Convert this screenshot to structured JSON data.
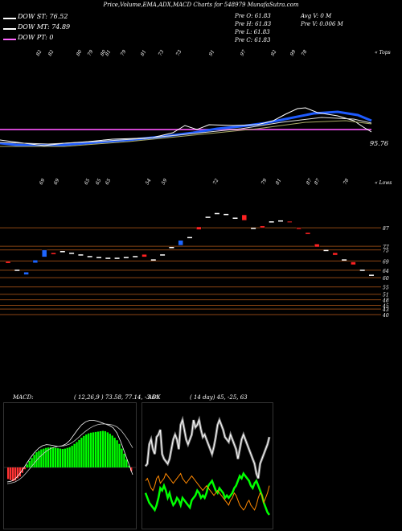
{
  "header": {
    "title": "Price,Volume,EMA,ADX,MACD Charts for 548979 MunafaSutra.com"
  },
  "legend": [
    {
      "label": "DOW ST: 76.52",
      "color": "#ffffff"
    },
    {
      "label": "DOW MT: 74.89",
      "color": "#ffffff"
    },
    {
      "label": "DOW PT: 0",
      "color": "#ff66ff"
    }
  ],
  "ohlc": {
    "open": "Pre  O: 61.83",
    "high": "Pre  H: 61.83",
    "low": "Pre  L: 61.83",
    "close": "Pre  C: 61.83",
    "avg_vol": "Avg V: 0  M",
    "pre_vol": "Pre  V: 0.006  M"
  },
  "upper_label": "« Tops",
  "lower_label": "« Lows",
  "last_price_label": "95.76",
  "macd": {
    "title": "MACD:",
    "params": "( 12,26,9 ) 73.58, 77.14, -3.61"
  },
  "adx": {
    "title": "ADX",
    "params": "( 14  day) 45,  -25,  63"
  },
  "chart_data": [
    {
      "type": "line",
      "name": "price-ema-panel",
      "tops_labels": [
        "82",
        "82",
        "80",
        "79",
        "80",
        "81",
        "79",
        "81",
        "73",
        "73",
        "91",
        "97",
        "92",
        "99",
        "78"
      ],
      "lows_labels": [
        "69",
        "69",
        "65",
        "65",
        "65",
        "54",
        "59",
        "72",
        "79",
        "81",
        "87",
        "87",
        "78"
      ],
      "price_label": "95.76"
    },
    {
      "type": "scatter",
      "name": "candles-support-resistance",
      "levels": [
        87,
        77,
        75,
        69,
        64,
        60,
        55,
        51,
        48,
        45,
        43,
        40
      ],
      "candles": [
        {
          "o": 67.8,
          "c": 68.8,
          "color": "red"
        },
        {
          "o": 64.3,
          "c": 64.3,
          "color": "white"
        },
        {
          "o": 61.6,
          "c": 63.0,
          "color": "blue"
        },
        {
          "o": 68.0,
          "c": 69.5,
          "color": "blue"
        },
        {
          "o": 71.2,
          "c": 75.0,
          "color": "blue"
        },
        {
          "o": 73.5,
          "c": 72.6,
          "color": "red"
        },
        {
          "o": 74.4,
          "c": 74.4,
          "color": "white"
        },
        {
          "o": 73.5,
          "c": 73.5,
          "color": "white"
        },
        {
          "o": 72.6,
          "c": 72.6,
          "color": "white"
        },
        {
          "o": 71.7,
          "c": 71.7,
          "color": "white"
        },
        {
          "o": 71.2,
          "c": 71.2,
          "color": "white"
        },
        {
          "o": 70.8,
          "c": 70.8,
          "color": "white"
        },
        {
          "o": 70.8,
          "c": 70.8,
          "color": "white"
        },
        {
          "o": 71.2,
          "c": 71.2,
          "color": "white"
        },
        {
          "o": 71.7,
          "c": 71.7,
          "color": "white"
        },
        {
          "o": 72.6,
          "c": 71.2,
          "color": "red"
        },
        {
          "o": 69.9,
          "c": 69.9,
          "color": "white"
        },
        {
          "o": 72.6,
          "c": 72.6,
          "color": "white"
        },
        {
          "o": 76.6,
          "c": 76.6,
          "color": "white"
        },
        {
          "o": 77.5,
          "c": 80.2,
          "color": "blue"
        },
        {
          "o": 82.0,
          "c": 82.0,
          "color": "white"
        },
        {
          "o": 86.0,
          "c": 87.5,
          "color": "red"
        },
        {
          "o": 93.0,
          "c": 93.0,
          "color": "white"
        },
        {
          "o": 95.0,
          "c": 95.0,
          "color": "white"
        },
        {
          "o": 94.5,
          "c": 94.5,
          "color": "white"
        },
        {
          "o": 92.5,
          "c": 92.5,
          "color": "white"
        },
        {
          "o": 91.0,
          "c": 94.0,
          "color": "red"
        },
        {
          "o": 87.0,
          "c": 87.0,
          "color": "white"
        },
        {
          "o": 88.0,
          "c": 87.0,
          "color": "red"
        },
        {
          "o": 90.5,
          "c": 90.5,
          "color": "white"
        },
        {
          "o": 91.0,
          "c": 91.0,
          "color": "white"
        },
        {
          "o": 90.5,
          "c": 90.0,
          "color": "red"
        },
        {
          "o": 87.0,
          "c": 86.2,
          "color": "red"
        },
        {
          "o": 84.4,
          "c": 83.5,
          "color": "red"
        },
        {
          "o": 78.2,
          "c": 76.6,
          "color": "red"
        },
        {
          "o": 75.0,
          "c": 75.0,
          "color": "white"
        },
        {
          "o": 73.5,
          "c": 72.2,
          "color": "red"
        },
        {
          "o": 69.9,
          "c": 69.9,
          "color": "white"
        },
        {
          "o": 67.0,
          "c": 68.5,
          "color": "red"
        },
        {
          "o": 64.3,
          "c": 64.3,
          "color": "white"
        },
        {
          "o": 61.6,
          "c": 61.6,
          "color": "white"
        }
      ]
    },
    {
      "type": "bar",
      "name": "macd",
      "values": [
        -3.2,
        -3.5,
        -3.8,
        -3.6,
        -3.0,
        -2.5,
        -1.5,
        -0.5,
        0.8,
        1.8,
        2.6,
        3.5,
        4.2,
        4.6,
        5.0,
        5.2,
        5.4,
        5.5,
        5.6,
        5.5,
        5.4,
        5.3,
        5.2,
        5.1,
        5.2,
        5.4,
        5.6,
        6.0,
        6.5,
        7.0,
        7.6,
        8.2,
        8.7,
        9.1,
        9.4,
        9.6,
        9.7,
        9.8,
        9.9,
        10.0,
        10.1,
        10.0,
        9.7,
        9.3,
        8.8,
        8.2,
        7.5,
        6.5,
        5.2,
        3.8,
        2.2,
        0.5,
        -1.0
      ],
      "macd_line": [
        -4.0,
        -3.8,
        -3.2,
        -2.0,
        -0.5,
        1.2,
        2.8,
        4.2,
        5.3,
        6.0,
        6.3,
        6.2,
        6.0,
        5.8,
        6.0,
        6.5,
        7.5,
        9.0,
        10.5,
        11.8,
        12.6,
        13.0,
        13.0,
        12.8,
        12.4,
        12.0,
        11.6,
        11.0,
        9.5,
        7.0,
        4.0,
        1.0,
        -2.0
      ],
      "signal_line": [
        -4.5,
        -4.3,
        -4.0,
        -3.4,
        -2.5,
        -1.3,
        0.0,
        1.3,
        2.6,
        3.6,
        4.5,
        5.2,
        5.6,
        5.8,
        5.9,
        6.1,
        6.5,
        7.2,
        8.1,
        9.1,
        10.0,
        10.8,
        11.4,
        11.8,
        12.0,
        12.0,
        11.9,
        11.7,
        11.2,
        10.3,
        8.9,
        7.3,
        5.4
      ]
    },
    {
      "type": "line",
      "name": "adx",
      "series": [
        {
          "name": "",
          "color": "#ffffff",
          "values": [
            33,
            34,
            42,
            44,
            40,
            38,
            45,
            46,
            48,
            38,
            36,
            35,
            34,
            36,
            40,
            44,
            46,
            44,
            40,
            50,
            52,
            48,
            44,
            42,
            44,
            46,
            52,
            49,
            50,
            52,
            48,
            45,
            46,
            44,
            42,
            40,
            38,
            41,
            45,
            50,
            52,
            50,
            48,
            45,
            44,
            43,
            46,
            44,
            42,
            40,
            36,
            40,
            44,
            46,
            44,
            42,
            40,
            38,
            36,
            34,
            30,
            28,
            34,
            36,
            38,
            40,
            42,
            45
          ]
        },
        {
          "name": "",
          "color": "#00ff00",
          "values": [
            22,
            20,
            18,
            17,
            16,
            15,
            17,
            20,
            24,
            23,
            25,
            23,
            20,
            22,
            19,
            17,
            18,
            20,
            19,
            17,
            20,
            19,
            18,
            17,
            16,
            19,
            20,
            21,
            23,
            22,
            20,
            21,
            20,
            22,
            25,
            26,
            27,
            25,
            23,
            22,
            24,
            23,
            22,
            20,
            21,
            20,
            21,
            22,
            24,
            25,
            27,
            29,
            28,
            30,
            29,
            28,
            27,
            25,
            24,
            26,
            27,
            25,
            23,
            21,
            18,
            16,
            14,
            13
          ]
        },
        {
          "name": "",
          "color": "#ff8800",
          "values": [
            27,
            28,
            26,
            24,
            23,
            25,
            28,
            29,
            26,
            27,
            28,
            30,
            29,
            28,
            27,
            26,
            27,
            28,
            29,
            30,
            28,
            27,
            26,
            27,
            28,
            29,
            28,
            27,
            26,
            25,
            24,
            23,
            24,
            25,
            24,
            23,
            22,
            21,
            22,
            23,
            22,
            21,
            20,
            19,
            18,
            17,
            19,
            20,
            22,
            21,
            19,
            17,
            16,
            15,
            16,
            18,
            19,
            17,
            16,
            15,
            17,
            20,
            22,
            21,
            18,
            20,
            22,
            25
          ]
        }
      ]
    }
  ]
}
